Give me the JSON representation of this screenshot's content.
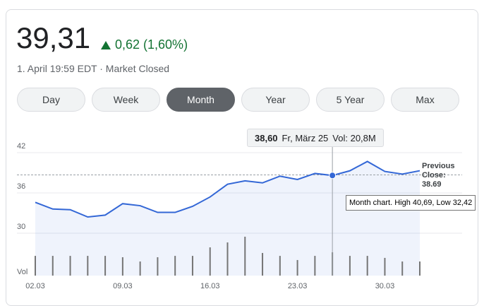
{
  "quote": {
    "price": "39,31",
    "change": "0,62 (1,60%)",
    "timestamp": "1. April 19:59 EDT · Market Closed"
  },
  "ranges": {
    "options": [
      "Day",
      "Week",
      "Month",
      "Year",
      "5 Year",
      "Max"
    ],
    "selected": "Month"
  },
  "chart_data": {
    "type": "line",
    "categories": [
      "02.03",
      null,
      null,
      null,
      null,
      "09.03",
      null,
      null,
      null,
      null,
      "16.03",
      null,
      null,
      null,
      null,
      "23.03",
      null,
      null,
      null,
      null,
      "30.03",
      null,
      null
    ],
    "values": [
      34.6,
      33.6,
      33.5,
      32.42,
      32.7,
      34.4,
      34.1,
      33.1,
      33.1,
      34.0,
      35.4,
      37.3,
      37.8,
      37.5,
      38.5,
      38.0,
      38.9,
      38.6,
      39.3,
      40.69,
      39.2,
      38.8,
      39.31
    ],
    "volumes": [
      17.6,
      17.6,
      17.6,
      17.6,
      17.6,
      16.4,
      12.6,
      16.4,
      17.6,
      17.6,
      25.2,
      29.6,
      34.7,
      20.2,
      17.6,
      13.9,
      17.6,
      20.8,
      17.6,
      17.6,
      15.8,
      12.6,
      12.6
    ],
    "volume_label": "Vol",
    "color": "#3367d6",
    "ylim": [
      24,
      44
    ],
    "yticks": [
      42,
      36,
      30
    ],
    "grid": true,
    "previous_close": {
      "label": "Previous Close:",
      "value": 38.69
    },
    "tooltip": {
      "index": 17,
      "price": "38,60",
      "date": "Fr, März 25",
      "volume": "Vol: 20,8M"
    },
    "summary": "Month chart. High 40,69, Low 32,42"
  }
}
